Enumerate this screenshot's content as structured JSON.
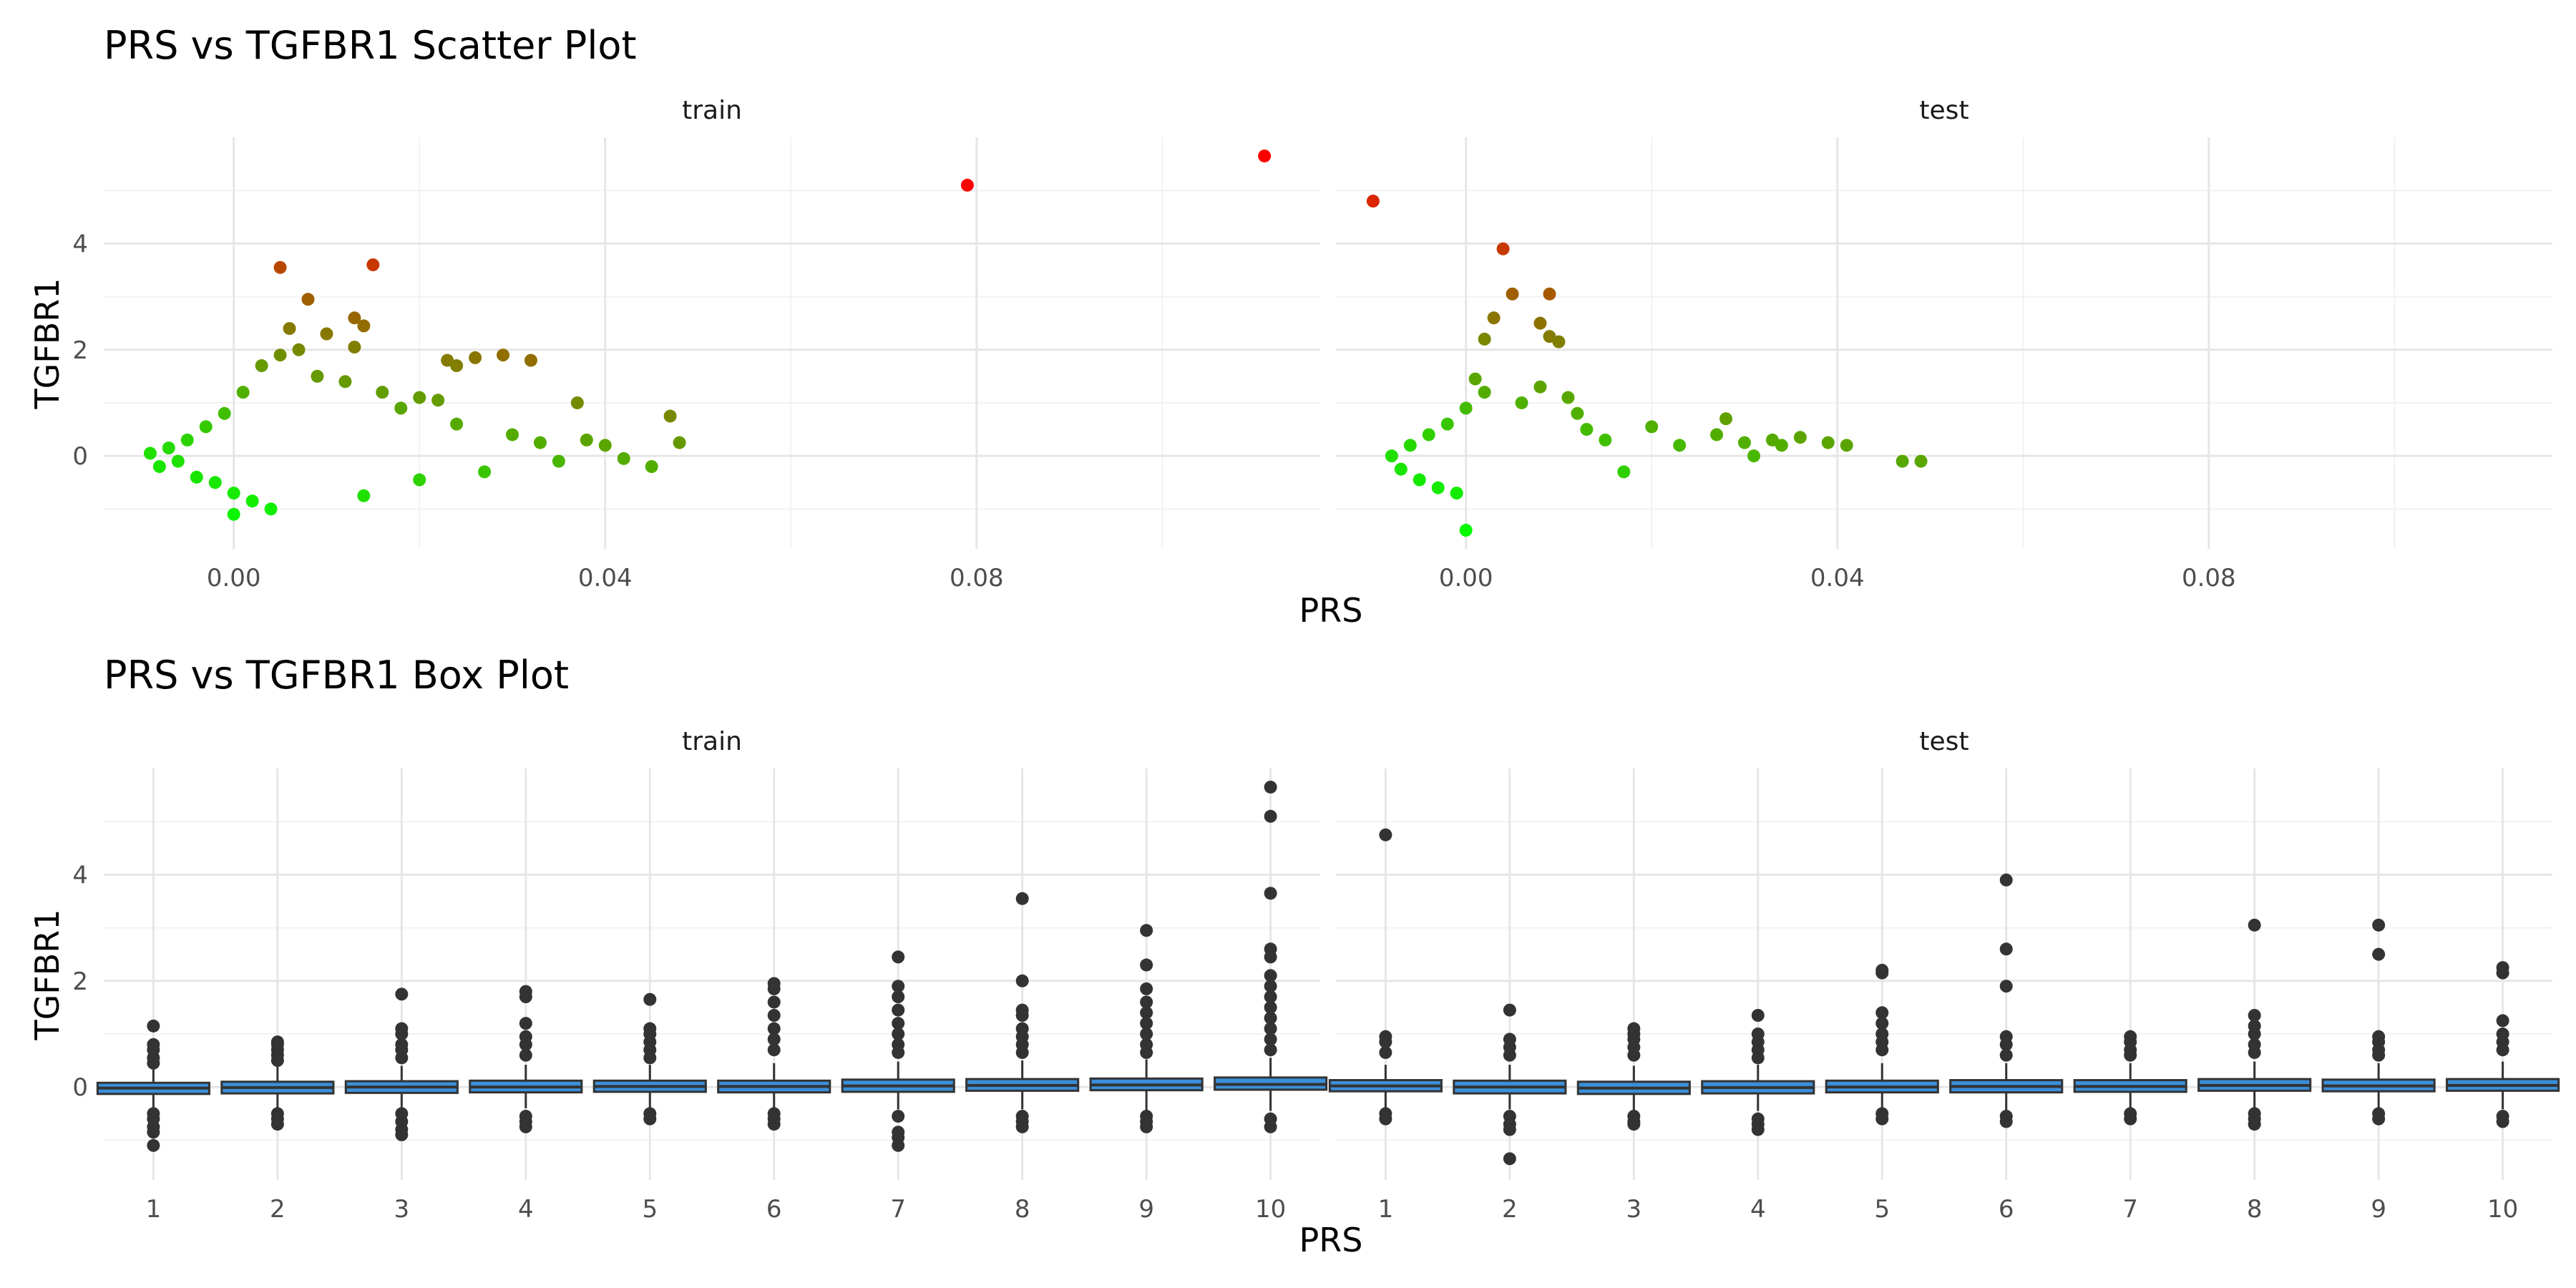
{
  "chart_data": [
    {
      "type": "scatter",
      "title": "PRS vs TGFBR1 Scatter Plot",
      "xlabel": "PRS",
      "ylabel": "TGFBR1",
      "facets": [
        "train",
        "test"
      ],
      "x_ticks": [
        "0.00",
        "0.04",
        "0.08"
      ],
      "y_ticks": [
        "0",
        "2",
        "4"
      ],
      "xlim": [
        -0.014,
        0.117
      ],
      "ylim": [
        -1.75,
        6.0
      ],
      "grid": true,
      "legend": "none",
      "color_scale": {
        "low": "#00ff00",
        "high": "#ff0000"
      },
      "panels": [
        {
          "facet": "train",
          "points": [
            [
              -0.009,
              0.05
            ],
            [
              -0.008,
              -0.2
            ],
            [
              -0.007,
              0.15
            ],
            [
              -0.006,
              -0.1
            ],
            [
              -0.005,
              0.3
            ],
            [
              -0.004,
              -0.4
            ],
            [
              -0.003,
              0.55
            ],
            [
              -0.002,
              -0.5
            ],
            [
              -0.001,
              0.8
            ],
            [
              0.0,
              -0.7
            ],
            [
              0.001,
              1.2
            ],
            [
              0.002,
              -0.85
            ],
            [
              0.003,
              1.7
            ],
            [
              0.004,
              -1.0
            ],
            [
              0.0,
              -1.1
            ],
            [
              0.005,
              1.9
            ],
            [
              0.006,
              2.4
            ],
            [
              0.005,
              3.55
            ],
            [
              0.007,
              2.0
            ],
            [
              0.008,
              2.95
            ],
            [
              0.009,
              1.5
            ],
            [
              0.01,
              2.3
            ],
            [
              0.012,
              1.4
            ],
            [
              0.013,
              2.6
            ],
            [
              0.014,
              2.45
            ],
            [
              0.013,
              2.05
            ],
            [
              0.015,
              3.6
            ],
            [
              0.016,
              1.2
            ],
            [
              0.018,
              0.9
            ],
            [
              0.02,
              1.1
            ],
            [
              0.022,
              1.05
            ],
            [
              0.023,
              1.8
            ],
            [
              0.024,
              1.7
            ],
            [
              0.026,
              1.85
            ],
            [
              0.029,
              1.9
            ],
            [
              0.032,
              1.8
            ],
            [
              0.014,
              -0.75
            ],
            [
              0.02,
              -0.45
            ],
            [
              0.024,
              0.6
            ],
            [
              0.027,
              -0.3
            ],
            [
              0.03,
              0.4
            ],
            [
              0.033,
              0.25
            ],
            [
              0.035,
              -0.1
            ],
            [
              0.037,
              1.0
            ],
            [
              0.038,
              0.3
            ],
            [
              0.04,
              0.2
            ],
            [
              0.042,
              -0.05
            ],
            [
              0.045,
              -0.2
            ],
            [
              0.047,
              0.75
            ],
            [
              0.048,
              0.25
            ],
            [
              0.079,
              5.1
            ],
            [
              0.111,
              5.65
            ]
          ]
        },
        {
          "facet": "test",
          "points": [
            [
              -0.008,
              0.0
            ],
            [
              -0.007,
              -0.25
            ],
            [
              -0.006,
              0.2
            ],
            [
              -0.005,
              -0.45
            ],
            [
              -0.004,
              0.4
            ],
            [
              -0.003,
              -0.6
            ],
            [
              -0.002,
              0.6
            ],
            [
              -0.001,
              -0.7
            ],
            [
              0.0,
              0.9
            ],
            [
              0.0,
              -1.4
            ],
            [
              -0.01,
              4.8
            ],
            [
              0.001,
              1.45
            ],
            [
              0.002,
              1.2
            ],
            [
              0.003,
              2.6
            ],
            [
              0.002,
              2.2
            ],
            [
              0.004,
              3.9
            ],
            [
              0.005,
              3.05
            ],
            [
              0.006,
              1.0
            ],
            [
              0.008,
              1.3
            ],
            [
              0.008,
              2.5
            ],
            [
              0.009,
              3.05
            ],
            [
              0.009,
              2.25
            ],
            [
              0.01,
              2.15
            ],
            [
              0.011,
              1.1
            ],
            [
              0.012,
              0.8
            ],
            [
              0.013,
              0.5
            ],
            [
              0.015,
              0.3
            ],
            [
              0.017,
              -0.3
            ],
            [
              0.02,
              0.55
            ],
            [
              0.023,
              0.2
            ],
            [
              0.027,
              0.4
            ],
            [
              0.028,
              0.7
            ],
            [
              0.03,
              0.25
            ],
            [
              0.031,
              0.0
            ],
            [
              0.033,
              0.3
            ],
            [
              0.034,
              0.2
            ],
            [
              0.036,
              0.35
            ],
            [
              0.039,
              0.25
            ],
            [
              0.041,
              0.2
            ],
            [
              0.047,
              -0.1
            ],
            [
              0.049,
              -0.1
            ]
          ]
        }
      ]
    },
    {
      "type": "box",
      "title": "PRS vs TGFBR1 Box Plot",
      "xlabel": "PRS",
      "ylabel": "TGFBR1",
      "facets": [
        "train",
        "test"
      ],
      "categories": [
        "1",
        "2",
        "3",
        "4",
        "5",
        "6",
        "7",
        "8",
        "9",
        "10"
      ],
      "y_ticks": [
        "0",
        "2",
        "4"
      ],
      "ylim": [
        -1.75,
        6.0
      ],
      "grid": true,
      "box_fill": "#3b8fd9",
      "panels": [
        {
          "facet": "train",
          "boxes": [
            {
              "q1": -0.13,
              "median": -0.02,
              "q3": 0.08,
              "lo": -0.38,
              "hi": 0.33,
              "outliers": [
                1.15,
                0.8,
                0.7,
                0.55,
                0.45,
                -0.5,
                -0.6,
                -0.75,
                -0.85,
                -1.1
              ]
            },
            {
              "q1": -0.12,
              "median": -0.01,
              "q3": 0.1,
              "lo": -0.42,
              "hi": 0.38,
              "outliers": [
                0.85,
                0.8,
                0.7,
                0.6,
                0.5,
                -0.5,
                -0.6,
                -0.7
              ]
            },
            {
              "q1": -0.11,
              "median": 0.0,
              "q3": 0.11,
              "lo": -0.4,
              "hi": 0.4,
              "outliers": [
                1.75,
                1.1,
                1.0,
                0.8,
                0.7,
                0.55,
                -0.5,
                -0.65,
                -0.8,
                -0.9
              ]
            },
            {
              "q1": -0.1,
              "median": 0.0,
              "q3": 0.12,
              "lo": -0.4,
              "hi": 0.42,
              "outliers": [
                1.8,
                1.7,
                1.2,
                0.95,
                0.8,
                0.6,
                -0.55,
                -0.65,
                -0.75
              ]
            },
            {
              "q1": -0.09,
              "median": 0.01,
              "q3": 0.12,
              "lo": -0.4,
              "hi": 0.42,
              "outliers": [
                1.65,
                1.1,
                1.0,
                0.85,
                0.7,
                0.55,
                -0.5,
                -0.6
              ]
            },
            {
              "q1": -0.1,
              "median": 0.01,
              "q3": 0.12,
              "lo": -0.45,
              "hi": 0.45,
              "outliers": [
                1.95,
                1.85,
                1.6,
                1.35,
                1.1,
                0.9,
                0.7,
                -0.5,
                -0.6,
                -0.7
              ]
            },
            {
              "q1": -0.09,
              "median": 0.02,
              "q3": 0.14,
              "lo": -0.42,
              "hi": 0.48,
              "outliers": [
                2.45,
                1.9,
                1.7,
                1.45,
                1.2,
                1.0,
                0.8,
                0.65,
                -0.55,
                -0.85,
                -0.95,
                -1.1
              ]
            },
            {
              "q1": -0.07,
              "median": 0.03,
              "q3": 0.15,
              "lo": -0.42,
              "hi": 0.5,
              "outliers": [
                3.55,
                2.0,
                1.45,
                1.35,
                1.1,
                0.95,
                0.8,
                0.65,
                -0.55,
                -0.65,
                -0.75
              ]
            },
            {
              "q1": -0.06,
              "median": 0.04,
              "q3": 0.16,
              "lo": -0.45,
              "hi": 0.52,
              "outliers": [
                2.95,
                2.3,
                1.85,
                1.6,
                1.4,
                1.2,
                1.0,
                0.8,
                0.65,
                -0.55,
                -0.65,
                -0.75
              ]
            },
            {
              "q1": -0.05,
              "median": 0.05,
              "q3": 0.18,
              "lo": -0.45,
              "hi": 0.55,
              "outliers": [
                5.65,
                5.1,
                3.65,
                2.6,
                2.45,
                2.1,
                1.9,
                1.7,
                1.5,
                1.3,
                1.1,
                0.9,
                0.7,
                -0.6,
                -0.75
              ]
            }
          ]
        },
        {
          "facet": "test",
          "boxes": [
            {
              "q1": -0.08,
              "median": 0.02,
              "q3": 0.13,
              "lo": -0.4,
              "hi": 0.42,
              "outliers": [
                4.75,
                0.95,
                0.85,
                0.65,
                -0.5,
                -0.6
              ]
            },
            {
              "q1": -0.12,
              "median": 0.0,
              "q3": 0.12,
              "lo": -0.42,
              "hi": 0.42,
              "outliers": [
                1.45,
                0.9,
                0.75,
                0.6,
                -0.55,
                -0.7,
                -0.8,
                -1.35
              ]
            },
            {
              "q1": -0.13,
              "median": -0.02,
              "q3": 0.1,
              "lo": -0.45,
              "hi": 0.4,
              "outliers": [
                1.1,
                1.0,
                0.9,
                0.75,
                0.6,
                -0.55,
                -0.65,
                -0.7
              ]
            },
            {
              "q1": -0.12,
              "median": -0.01,
              "q3": 0.11,
              "lo": -0.45,
              "hi": 0.42,
              "outliers": [
                1.35,
                1.0,
                0.85,
                0.7,
                0.55,
                -0.6,
                -0.7,
                -0.8
              ]
            },
            {
              "q1": -0.1,
              "median": 0.0,
              "q3": 0.12,
              "lo": -0.45,
              "hi": 0.45,
              "outliers": [
                2.2,
                2.15,
                1.4,
                1.2,
                1.0,
                0.85,
                0.7,
                -0.5,
                -0.6
              ]
            },
            {
              "q1": -0.1,
              "median": 0.01,
              "q3": 0.13,
              "lo": -0.45,
              "hi": 0.45,
              "outliers": [
                3.9,
                2.6,
                1.9,
                0.95,
                0.8,
                0.6,
                -0.55,
                -0.65
              ]
            },
            {
              "q1": -0.09,
              "median": 0.01,
              "q3": 0.13,
              "lo": -0.42,
              "hi": 0.45,
              "outliers": [
                0.95,
                0.85,
                0.7,
                0.6,
                -0.5,
                -0.6
              ]
            },
            {
              "q1": -0.07,
              "median": 0.03,
              "q3": 0.15,
              "lo": -0.42,
              "hi": 0.48,
              "outliers": [
                3.05,
                1.35,
                1.15,
                1.0,
                0.8,
                0.65,
                -0.5,
                -0.6,
                -0.7
              ]
            },
            {
              "q1": -0.08,
              "median": 0.02,
              "q3": 0.14,
              "lo": -0.42,
              "hi": 0.45,
              "outliers": [
                3.05,
                2.5,
                0.95,
                0.85,
                0.7,
                0.6,
                -0.5,
                -0.6
              ]
            },
            {
              "q1": -0.07,
              "median": 0.03,
              "q3": 0.15,
              "lo": -0.42,
              "hi": 0.48,
              "outliers": [
                2.25,
                2.15,
                1.25,
                1.0,
                0.85,
                0.7,
                -0.55,
                -0.65
              ]
            }
          ]
        }
      ]
    }
  ]
}
